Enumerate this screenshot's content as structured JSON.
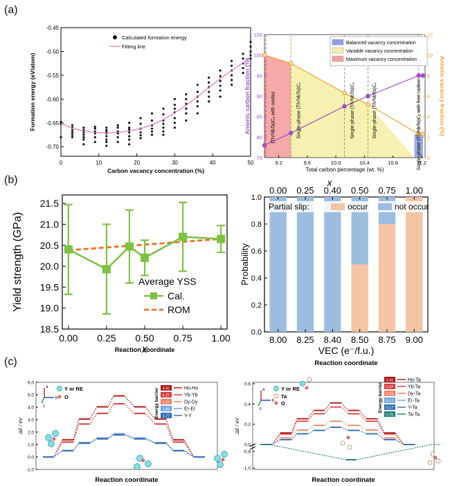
{
  "panel_labels": {
    "a": "(a)",
    "b": "(b)",
    "c": "(c)"
  },
  "colors": {
    "pink": "#e07fc2",
    "purple": "#a050c8",
    "orange": "#f0a030",
    "green": "#7dc242",
    "rom": "#f07020",
    "blue_bar": "#9dbde0",
    "peach_bar": "#f5c4a4",
    "red_region": "#f4a0a0",
    "yellow_region": "#f6f0a8",
    "blue_region": "#8fa0e6"
  },
  "chart_data": [
    {
      "id": "a-left",
      "type": "scatter",
      "xlabel": "Carbon vacancy concentration (%)",
      "ylabel": "Formation energy (eV/atom)",
      "xlim": [
        0,
        50
      ],
      "ylim": [
        -0.72,
        -0.45
      ],
      "xticks": [
        "0",
        "10",
        "20",
        "30",
        "40",
        "50"
      ],
      "yticks": [
        "-0.45",
        "-0.50",
        "-0.55",
        "-0.60",
        "-0.65",
        "-0.70"
      ],
      "legend": [
        "Calculated formation energy",
        "Fitting line"
      ],
      "fit": {
        "x": [
          0,
          3,
          6,
          9,
          12,
          15,
          18,
          21,
          24,
          27,
          30,
          33,
          36,
          39,
          42,
          45,
          48,
          50
        ],
        "y": [
          -0.651,
          -0.661,
          -0.667,
          -0.67,
          -0.671,
          -0.67,
          -0.667,
          -0.662,
          -0.654,
          -0.643,
          -0.629,
          -0.613,
          -0.595,
          -0.576,
          -0.557,
          -0.54,
          -0.524,
          -0.512
        ]
      },
      "points": {
        "x": [
          0,
          0,
          0,
          3,
          3,
          3,
          3,
          3,
          3,
          6,
          6,
          6,
          6,
          6,
          6,
          6,
          9,
          9,
          9,
          9,
          9,
          9,
          12,
          12,
          12,
          12,
          12,
          12,
          12,
          12,
          15,
          15,
          15,
          15,
          15,
          15,
          18,
          18,
          18,
          18,
          18,
          18,
          18,
          21,
          21,
          21,
          21,
          21,
          21,
          24,
          24,
          24,
          24,
          24,
          24,
          27,
          27,
          27,
          27,
          27,
          27,
          27,
          30,
          30,
          30,
          30,
          30,
          30,
          30,
          33,
          33,
          33,
          33,
          33,
          33,
          36,
          36,
          36,
          36,
          36,
          36,
          39,
          39,
          39,
          39,
          39,
          39,
          42,
          42,
          42,
          42,
          42,
          42,
          45,
          45,
          45,
          45,
          45,
          45,
          48,
          48,
          48,
          48,
          48,
          50,
          50,
          50,
          50,
          50
        ],
        "y": [
          -0.648,
          -0.652,
          -0.68,
          -0.655,
          -0.66,
          -0.665,
          -0.67,
          -0.675,
          -0.68,
          -0.66,
          -0.665,
          -0.67,
          -0.675,
          -0.68,
          -0.685,
          -0.695,
          -0.658,
          -0.662,
          -0.668,
          -0.672,
          -0.68,
          -0.69,
          -0.66,
          -0.665,
          -0.668,
          -0.672,
          -0.678,
          -0.685,
          -0.69,
          -0.698,
          -0.655,
          -0.66,
          -0.668,
          -0.672,
          -0.68,
          -0.69,
          -0.65,
          -0.66,
          -0.664,
          -0.67,
          -0.678,
          -0.685,
          -0.695,
          -0.64,
          -0.652,
          -0.662,
          -0.67,
          -0.676,
          -0.682,
          -0.63,
          -0.645,
          -0.655,
          -0.662,
          -0.668,
          -0.675,
          -0.62,
          -0.632,
          -0.645,
          -0.652,
          -0.66,
          -0.668,
          -0.675,
          -0.6,
          -0.612,
          -0.62,
          -0.628,
          -0.64,
          -0.65,
          -0.66,
          -0.59,
          -0.6,
          -0.61,
          -0.62,
          -0.63,
          -0.645,
          -0.57,
          -0.585,
          -0.595,
          -0.605,
          -0.615,
          -0.63,
          -0.555,
          -0.565,
          -0.575,
          -0.585,
          -0.595,
          -0.605,
          -0.54,
          -0.552,
          -0.562,
          -0.572,
          -0.582,
          -0.595,
          -0.52,
          -0.53,
          -0.54,
          -0.55,
          -0.56,
          -0.57,
          -0.505,
          -0.515,
          -0.525,
          -0.535,
          -0.545,
          -0.48,
          -0.49,
          -0.5,
          -0.508,
          -0.515
        ]
      }
    },
    {
      "id": "a-right",
      "type": "line",
      "xlabel": "Total carbon percentage (wt. %)",
      "ylabel_left": "Anionic carbon fraction (%)",
      "ylabel_right": "Anionic vacancy fraction (%)",
      "xlim": [
        9.0,
        11.25
      ],
      "ylim_left": [
        75,
        105
      ],
      "ylim_right": [
        0,
        12
      ],
      "xticks": [
        "9.2",
        "9.6",
        "10.0",
        "10.4",
        "10.8",
        "11.2"
      ],
      "yticks_left": [
        "75",
        "80",
        "85",
        "90",
        "95",
        "100",
        "105"
      ],
      "yticks_right": [
        "0",
        "2",
        "4",
        "6",
        "8",
        "10",
        "12"
      ],
      "legend": [
        "Balanced vacancy concentration",
        "Variable vacancy concentration",
        "Maximum vacancy concentration"
      ],
      "regions": [
        {
          "name": "max",
          "x": [
            9.0,
            9.37
          ]
        },
        {
          "name": "variable",
          "x": [
            9.37,
            11.1
          ]
        },
        {
          "name": "balanced",
          "x": [
            11.1,
            11.22
          ]
        }
      ],
      "series": [
        {
          "name": "Anionic carbon fraction",
          "color": "#a050c8",
          "x": [
            9.0,
            9.37,
            10.12,
            10.45,
            11.16,
            11.22
          ],
          "y": [
            78,
            81,
            87.5,
            90,
            95,
            95
          ]
        },
        {
          "name": "Anionic vacancy fraction",
          "color": "#f0a030",
          "x": [
            9.0,
            9.37,
            10.12,
            10.45,
            11.16,
            11.22
          ],
          "y": [
            10,
            9.2,
            6.3,
            5.2,
            2.3,
            2.3
          ]
        }
      ],
      "annotations": [
        "(TiVNbTa)Cₓ with oxides",
        "Single-phase (TiVNbTa)Cₓ",
        "Single-phase (TiVNbTa)Cₓ",
        "Single-phase (TiVNbTa)Cₓ",
        "Single-phase (TiVNbTa)Cₓ with free carbon"
      ]
    },
    {
      "id": "b-left",
      "type": "line",
      "xlabel": "x",
      "ylabel": "Yield strength (GPa)",
      "xlim": [
        0,
        1
      ],
      "ylim": [
        18.5,
        21.7
      ],
      "xticks": [
        "0.00",
        "0.25",
        "0.50",
        "0.75",
        "1.00"
      ],
      "yticks": [
        "18.5",
        "19.0",
        "19.5",
        "20.0",
        "20.5",
        "21.0",
        "21.5"
      ],
      "legend_title": "Average YSS",
      "series": [
        {
          "name": "Cal.",
          "x": [
            0.0,
            0.25,
            0.4,
            0.5,
            0.75,
            1.0
          ],
          "y": [
            20.4,
            19.93,
            20.47,
            20.2,
            20.7,
            20.65
          ],
          "err": [
            1.07,
            1.07,
            0.87,
            0.42,
            0.82,
            0.32
          ]
        },
        {
          "name": "ROM",
          "x": [
            0.0,
            1.0
          ],
          "y": [
            20.38,
            20.65
          ]
        }
      ]
    },
    {
      "id": "b-right",
      "type": "bar",
      "xlabel": "VEC (e⁻/f.u.)",
      "xlabel_top": "x",
      "ylabel": "Probability",
      "categories": [
        "8.00",
        "8.25",
        "8.40",
        "8.50",
        "8.75",
        "9.00"
      ],
      "top_categories": [
        "0.00",
        "0.25",
        "0.40",
        "0.50",
        "0.75",
        "1.00"
      ],
      "ylim": [
        0,
        1.0
      ],
      "yticks": [
        "0.0",
        "0.2",
        "0.4",
        "0.6",
        "0.8",
        "1.0"
      ],
      "legend_title": "Partial slip:",
      "series": [
        {
          "name": "occur",
          "values": [
            0,
            0,
            0,
            0.5,
            0.8,
            1.0
          ]
        },
        {
          "name": "not occur",
          "values": [
            1.0,
            1.0,
            1.0,
            0.5,
            0.2,
            0
          ]
        }
      ]
    },
    {
      "id": "c-left",
      "type": "line",
      "xlabel": "Reaction coordinate",
      "ylabel": "ΔE / eV",
      "ylim": [
        -1.0,
        6.0
      ],
      "yticks": [
        "-1.0",
        "0.0",
        "1.0",
        "2.0",
        "3.0",
        "4.0",
        "5.0",
        "6.0"
      ],
      "barrier_title": "Energy barrier",
      "legend": [
        {
          "name": "Ho-Ho",
          "barrier": "4.91",
          "color": "#b01818"
        },
        {
          "name": "Yb-Yb",
          "barrier": "4.27",
          "color": "#d34040"
        },
        {
          "name": "Dy-Dy",
          "barrier": "1.87",
          "color": "#f08060"
        },
        {
          "name": "Er-Er",
          "barrier": "1.86",
          "color": "#70a8e0"
        },
        {
          "name": "Y-Y",
          "barrier": "1.77",
          "color": "#3070b8"
        }
      ]
    },
    {
      "id": "c-right",
      "type": "line",
      "xlabel": "Reaction coordinate",
      "ylabel": "ΔE / eV",
      "yticks": [
        "-1.0",
        "-0.8",
        "0.0",
        "0.2",
        "0.4",
        "0.6"
      ],
      "barrier_title": "Energy barrier",
      "legend": [
        {
          "name": "Ho-Ta",
          "barrier": "0.41",
          "color": "#b01818"
        },
        {
          "name": "Yb-Ta",
          "barrier": "0.37",
          "color": "#d34040"
        },
        {
          "name": "Dy-Ta",
          "barrier": "0.23",
          "color": "#f08060"
        },
        {
          "name": "Er-Ta",
          "barrier": "0.17",
          "color": "#70a8e0"
        },
        {
          "name": "Y-Ta",
          "barrier": "0.17",
          "color": "#3070b8"
        },
        {
          "name": "Ta-Ta",
          "barrier": "0.76",
          "color": "#208080"
        }
      ]
    }
  ],
  "mid_labels": {
    "b_left_bottom": "Reaction coordinate",
    "b_right_bottom": "Reaction coordinate"
  },
  "atom_legend": {
    "y_or_re": "Y or RE",
    "o": "O",
    "ta": "Ta"
  },
  "axis_tags": {
    "a": "a",
    "b": "b",
    "c": "c"
  }
}
